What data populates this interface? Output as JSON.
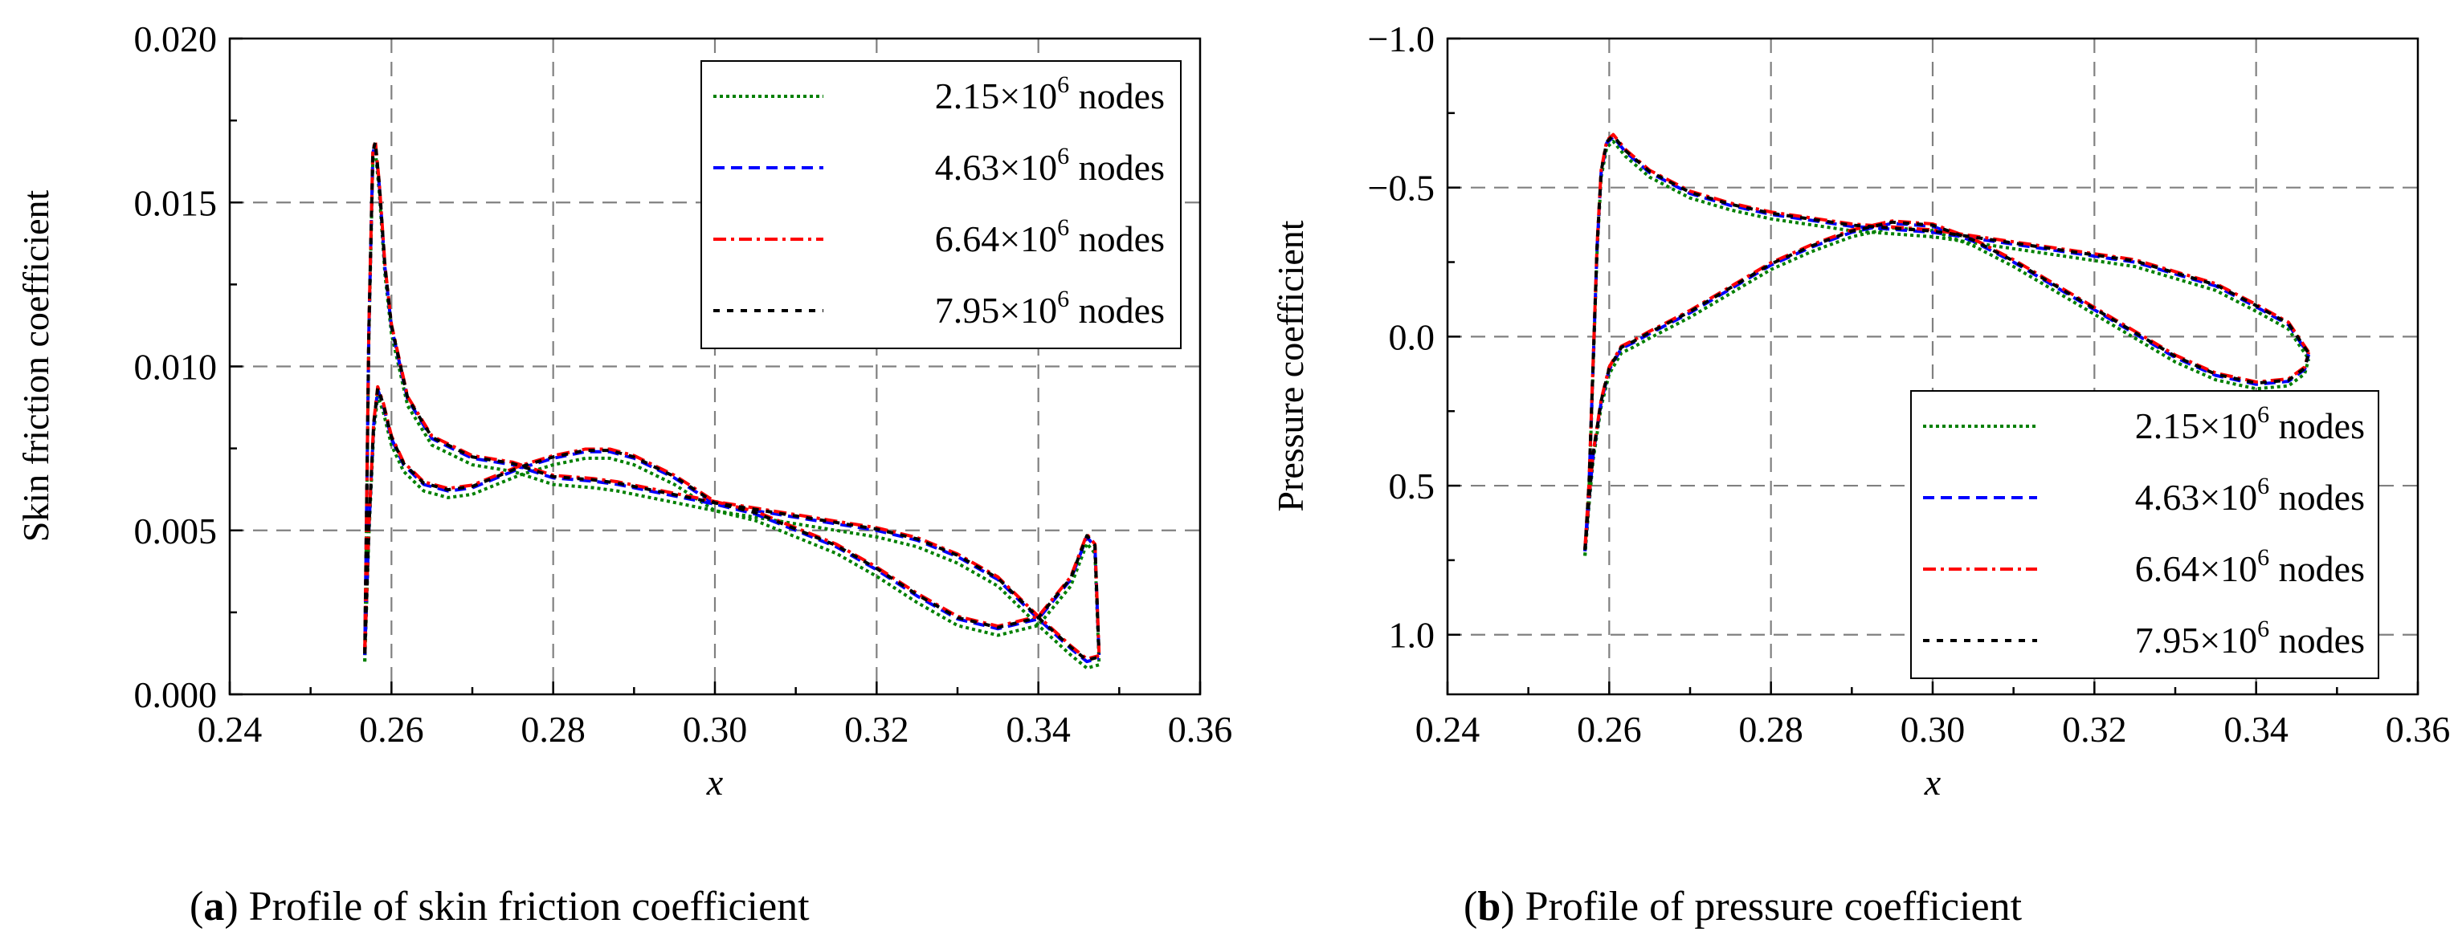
{
  "colors": {
    "series_2_15": "#008000",
    "series_4_63": "#0000ff",
    "series_6_64": "#ff0000",
    "series_7_95": "#000000",
    "grid": "#808080",
    "axis": "#000000"
  },
  "chart_data": [
    {
      "type": "line",
      "panel_label": "a",
      "caption": "Profile of skin friction coefficient",
      "xlabel": "x",
      "ylabel": "Skin friction coefficient",
      "xlim": [
        0.24,
        0.36
      ],
      "ylim": [
        0.0,
        0.02
      ],
      "y_inverted": false,
      "xticks": [
        0.24,
        0.26,
        0.28,
        0.3,
        0.32,
        0.34,
        0.36
      ],
      "xtick_labels": [
        "0.24",
        "0.26",
        "0.28",
        "0.30",
        "0.32",
        "0.34",
        "0.36"
      ],
      "yticks": [
        0.0,
        0.005,
        0.01,
        0.015,
        0.02
      ],
      "ytick_labels": [
        "0.000",
        "0.005",
        "0.010",
        "0.015",
        "0.020"
      ],
      "grid": true,
      "legend_position": "top-right",
      "series": [
        {
          "name": "2.15×10^6 nodes",
          "label_main": "2.15×10",
          "label_exp": "6",
          "label_tail": " nodes",
          "style": "dotted",
          "color_key": "series_2_15",
          "dx": 0.0,
          "dy": -0.0002
        },
        {
          "name": "4.63×10^6 nodes",
          "label_main": "4.63×10",
          "label_exp": "6",
          "label_tail": " nodes",
          "style": "dashed",
          "color_key": "series_4_63",
          "dx": 0.0,
          "dy": 0.0
        },
        {
          "name": "6.64×10^6 nodes",
          "label_main": "6.64×10",
          "label_exp": "6",
          "label_tail": " nodes",
          "style": "dashdot",
          "color_key": "series_6_64",
          "dx": 0.0,
          "dy": 8e-05
        },
        {
          "name": "7.95×10^6 nodes",
          "label_main": "7.95×10",
          "label_exp": "6",
          "label_tail": " nodes",
          "style": "shortdash",
          "color_key": "series_7_95",
          "dx": 0.0,
          "dy": 4e-05
        }
      ],
      "curves": [
        {
          "name": "branch-1",
          "x": [
            0.2567,
            0.2572,
            0.2577,
            0.258,
            0.2585,
            0.2592,
            0.26,
            0.262,
            0.265,
            0.27,
            0.275,
            0.28,
            0.285,
            0.288,
            0.292,
            0.296,
            0.3,
            0.305,
            0.31,
            0.315,
            0.32,
            0.325,
            0.33,
            0.335,
            0.34,
            0.344,
            0.346,
            0.347,
            0.3475
          ],
          "y": [
            0.0012,
            0.011,
            0.0165,
            0.0168,
            0.0155,
            0.013,
            0.0112,
            0.009,
            0.0078,
            0.0072,
            0.007,
            0.0066,
            0.0065,
            0.0064,
            0.0062,
            0.006,
            0.0058,
            0.0055,
            0.005,
            0.0045,
            0.0038,
            0.003,
            0.0023,
            0.002,
            0.0023,
            0.0035,
            0.0048,
            0.0045,
            0.0012
          ]
        },
        {
          "name": "branch-2",
          "x": [
            0.2567,
            0.2572,
            0.2578,
            0.2583,
            0.259,
            0.26,
            0.2615,
            0.264,
            0.267,
            0.27,
            0.273,
            0.276,
            0.28,
            0.284,
            0.287,
            0.29,
            0.295,
            0.3,
            0.305,
            0.31,
            0.315,
            0.32,
            0.325,
            0.33,
            0.335,
            0.34,
            0.344,
            0.346,
            0.3475
          ],
          "y": [
            0.0012,
            0.005,
            0.0082,
            0.0093,
            0.0088,
            0.0078,
            0.007,
            0.0064,
            0.0062,
            0.0063,
            0.0066,
            0.0069,
            0.0072,
            0.0074,
            0.0074,
            0.0072,
            0.0066,
            0.0058,
            0.0056,
            0.0054,
            0.0052,
            0.005,
            0.0047,
            0.0042,
            0.0035,
            0.0023,
            0.0014,
            0.001,
            0.0011
          ]
        }
      ]
    },
    {
      "type": "line",
      "panel_label": "b",
      "caption": "Profile of pressure coefficient",
      "xlabel": "x",
      "ylabel": "Pressure coefficient",
      "xlim": [
        0.24,
        0.36
      ],
      "ylim": [
        -1.0,
        1.2
      ],
      "y_inverted": true,
      "xticks": [
        0.24,
        0.26,
        0.28,
        0.3,
        0.32,
        0.34,
        0.36
      ],
      "xtick_labels": [
        "0.24",
        "0.26",
        "0.28",
        "0.30",
        "0.32",
        "0.34",
        "0.36"
      ],
      "yticks": [
        -1.0,
        -0.5,
        0.0,
        0.5,
        1.0
      ],
      "ytick_labels": [
        "−1.0",
        "−0.5",
        "0.0",
        "0.5",
        "1.0"
      ],
      "grid": true,
      "legend_position": "bottom-right",
      "series": [
        {
          "name": "2.15×10^6 nodes",
          "label_main": "2.15×10",
          "label_exp": "6",
          "label_tail": " nodes",
          "style": "dotted",
          "color_key": "series_2_15",
          "dx": 0.0,
          "dy": 0.015
        },
        {
          "name": "4.63×10^6 nodes",
          "label_main": "4.63×10",
          "label_exp": "6",
          "label_tail": " nodes",
          "style": "dashed",
          "color_key": "series_4_63",
          "dx": 0.0,
          "dy": 0.0
        },
        {
          "name": "6.64×10^6 nodes",
          "label_main": "6.64×10",
          "label_exp": "6",
          "label_tail": " nodes",
          "style": "dashdot",
          "color_key": "series_6_64",
          "dx": 0.0,
          "dy": -0.008
        },
        {
          "name": "7.95×10^6 nodes",
          "label_main": "7.95×10",
          "label_exp": "6",
          "label_tail": " nodes",
          "style": "shortdash",
          "color_key": "series_7_95",
          "dx": 0.0,
          "dy": -0.004
        }
      ],
      "curves": [
        {
          "name": "upper-surface",
          "x": [
            0.257,
            0.2575,
            0.258,
            0.2585,
            0.259,
            0.2597,
            0.2605,
            0.262,
            0.265,
            0.27,
            0.275,
            0.28,
            0.285,
            0.29,
            0.295,
            0.3,
            0.305,
            0.31,
            0.315,
            0.32,
            0.325,
            0.33,
            0.335,
            0.34,
            0.344,
            0.3465
          ],
          "y": [
            0.72,
            0.5,
            0.1,
            -0.3,
            -0.55,
            -0.65,
            -0.67,
            -0.62,
            -0.55,
            -0.48,
            -0.44,
            -0.41,
            -0.39,
            -0.37,
            -0.36,
            -0.35,
            -0.33,
            -0.31,
            -0.29,
            -0.27,
            -0.25,
            -0.21,
            -0.17,
            -0.1,
            -0.04,
            0.06
          ]
        },
        {
          "name": "lower-surface",
          "x": [
            0.257,
            0.2575,
            0.258,
            0.259,
            0.26,
            0.2615,
            0.263,
            0.265,
            0.27,
            0.275,
            0.28,
            0.285,
            0.29,
            0.295,
            0.3,
            0.305,
            0.31,
            0.315,
            0.32,
            0.325,
            0.33,
            0.335,
            0.34,
            0.344,
            0.346,
            0.3465
          ],
          "y": [
            0.72,
            0.55,
            0.4,
            0.22,
            0.11,
            0.04,
            0.02,
            -0.01,
            -0.08,
            -0.16,
            -0.24,
            -0.3,
            -0.35,
            -0.38,
            -0.37,
            -0.32,
            -0.25,
            -0.17,
            -0.09,
            -0.01,
            0.07,
            0.13,
            0.16,
            0.15,
            0.11,
            0.06
          ]
        }
      ]
    }
  ]
}
